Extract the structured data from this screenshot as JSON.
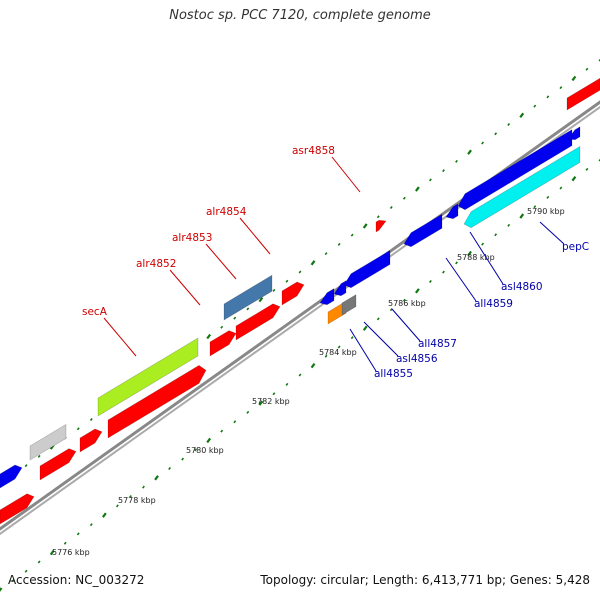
{
  "title": "Nostoc sp. PCC 7120, complete genome",
  "footer": {
    "accession": "Accession: NC_003272",
    "summary": "Topology: circular; Length: 6,413,771 bp; Genes: 5,428"
  },
  "colors": {
    "red": "#ff0000",
    "blue": "#0000ee",
    "cyan": "#00f0f0",
    "lime": "#aaee22",
    "steelblue": "#4477aa",
    "gray": "#cccccc",
    "darkgray": "#777777",
    "orange": "#ff8800",
    "label_red": "#cc0000",
    "label_blue": "#0000aa",
    "backbone": "#888888",
    "tick": "#117711"
  },
  "scale_labels": [
    "5776 kbp",
    "5778 kbp",
    "5780 kbp",
    "5782 kbp",
    "5784 kbp",
    "5786 kbp",
    "5788 kbp",
    "5790 kbp"
  ],
  "gene_labels": {
    "forward": [
      "secA",
      "alr4852",
      "alr4853",
      "alr4854",
      "asr4858"
    ],
    "reverse": [
      "all4855",
      "asl4856",
      "all4857",
      "all4859",
      "asl4860",
      "pepC"
    ]
  }
}
